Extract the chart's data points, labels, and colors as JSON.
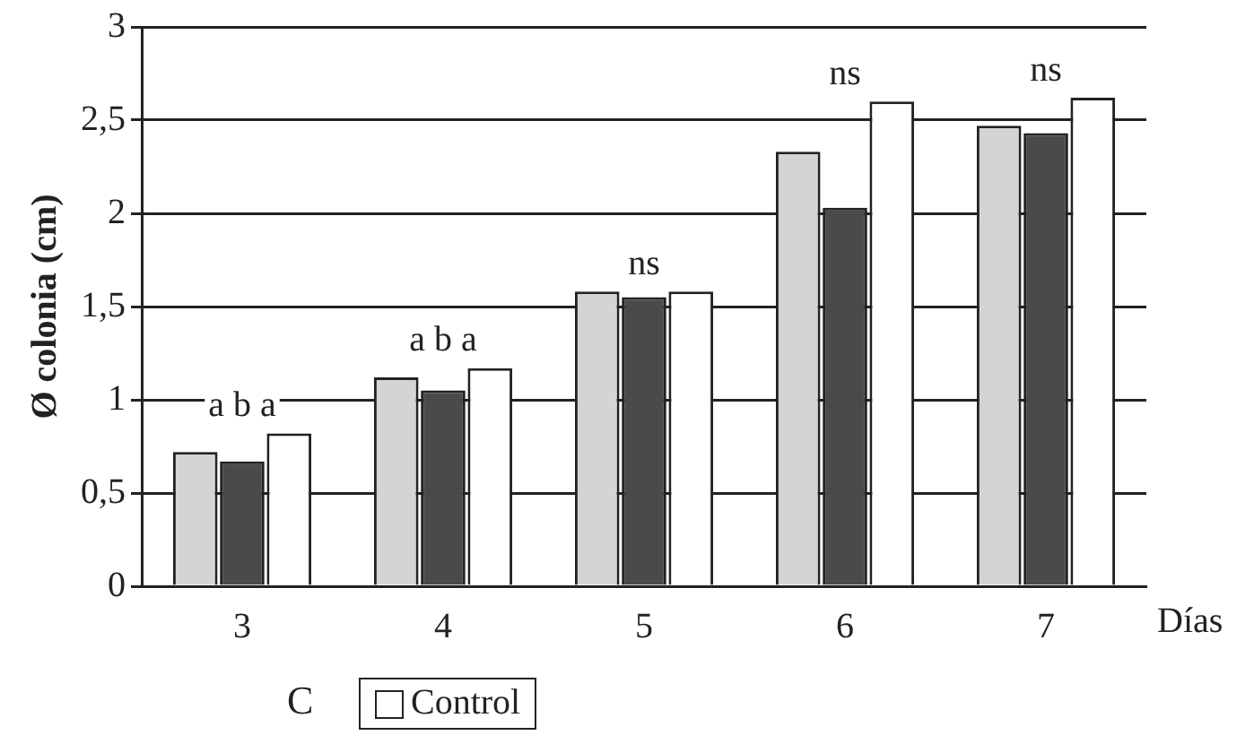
{
  "chart_data": {
    "type": "bar",
    "ylabel": "Ø colonia (cm)",
    "xlabel": "Días",
    "categories": [
      "3",
      "4",
      "5",
      "6",
      "7"
    ],
    "series": [
      {
        "color": "#d4d4d4",
        "values": [
          0.72,
          1.12,
          1.58,
          2.33,
          2.47
        ]
      },
      {
        "color": "#4a4a4a",
        "values": [
          0.67,
          1.05,
          1.55,
          2.03,
          2.43
        ]
      },
      {
        "name": "Control",
        "color": "#ffffff",
        "values": [
          0.82,
          1.17,
          1.58,
          2.6,
          2.62
        ]
      }
    ],
    "ylim": [
      0,
      3
    ],
    "yticks": [
      0,
      {
        "value": 0.5,
        "label": "0,5"
      },
      1,
      {
        "value": 1.5,
        "label": "1,5"
      },
      2,
      {
        "value": 2.5,
        "label": "2,5"
      },
      3
    ],
    "grid": "y",
    "legend": "bottom",
    "annotations": [
      "a b a",
      "a b a",
      "ns",
      "ns",
      "ns",
      "C"
    ]
  }
}
